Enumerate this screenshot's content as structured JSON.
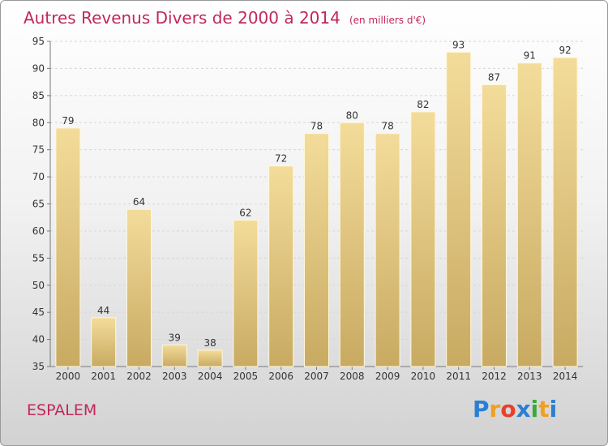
{
  "title": "Autres Revenus Divers de 2000 à 2014",
  "subtitle": "(en milliers d'€)",
  "location": "ESPALEM",
  "logo": {
    "text": "Proxiti",
    "letters": [
      "P",
      "r",
      "o",
      "x",
      "i",
      "t",
      "i"
    ],
    "colors": [
      "#2a7fd4",
      "#f0a020",
      "#e8402a",
      "#2a7fd4",
      "#3aa83a",
      "#f0a020",
      "#2a7fd4"
    ]
  },
  "colors": {
    "bar_light": "#f3dc9a",
    "bar_dark": "#c8aa62",
    "title": "#c0285a"
  },
  "chart_data": {
    "type": "bar",
    "categories": [
      "2000",
      "2001",
      "2002",
      "2003",
      "2004",
      "2005",
      "2006",
      "2007",
      "2008",
      "2009",
      "2010",
      "2011",
      "2012",
      "2013",
      "2014"
    ],
    "values": [
      79,
      44,
      64,
      39,
      38,
      62,
      72,
      78,
      80,
      78,
      82,
      93,
      87,
      91,
      92
    ],
    "ylim": [
      35,
      95
    ],
    "yticks": [
      35,
      40,
      45,
      50,
      55,
      60,
      65,
      70,
      75,
      80,
      85,
      90,
      95
    ],
    "grid": true,
    "xlabel": "",
    "ylabel": ""
  }
}
